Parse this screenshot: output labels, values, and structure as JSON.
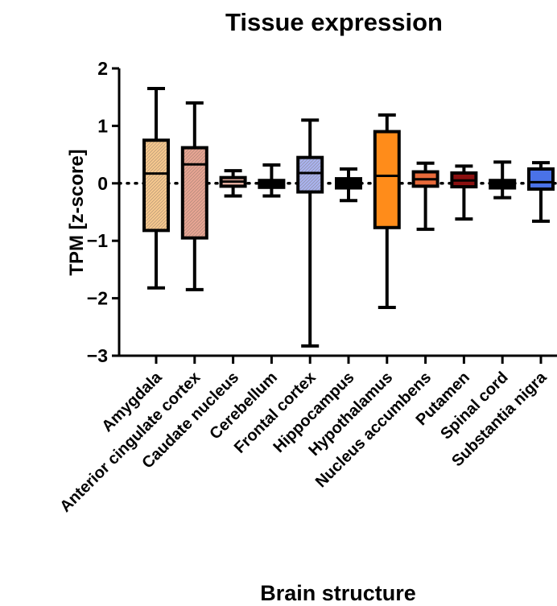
{
  "chart_data": {
    "type": "box",
    "title": "Tissue expression",
    "xlabel": "Brain structure",
    "ylabel": "TPM [z-score]",
    "ylim": [
      -3,
      2
    ],
    "yticks": [
      2,
      1,
      0,
      -1,
      -2,
      -3
    ],
    "ytick_labels": [
      "2",
      "1",
      "0",
      "−1",
      "−2",
      "−3"
    ],
    "reference_line": {
      "y": 0,
      "style": "dotted"
    },
    "categories": [
      "Amygdala",
      "Anterior cingulate cortex",
      "Caudate nucleus",
      "Cerebellum",
      "Frontal cortex",
      "Hippocampus",
      "Hypothalamus",
      "Nucleus accumbens",
      "Putamen",
      "Spinal cord",
      "Substantia nigra"
    ],
    "boxes": [
      {
        "min": -1.82,
        "q1": -0.82,
        "median": 0.17,
        "q3": 0.75,
        "max": 1.65,
        "color": "#F6C88E",
        "hatched": true
      },
      {
        "min": -1.85,
        "q1": -0.95,
        "median": 0.33,
        "q3": 0.62,
        "max": 1.4,
        "color": "#E8A593",
        "hatched": true
      },
      {
        "min": -0.22,
        "q1": -0.05,
        "median": 0.03,
        "q3": 0.1,
        "max": 0.22,
        "color": "#F0B7A7",
        "hatched": false
      },
      {
        "min": -0.22,
        "q1": -0.07,
        "median": -0.01,
        "q3": 0.05,
        "max": 0.32,
        "color": "#000000",
        "hatched": false
      },
      {
        "min": -2.83,
        "q1": -0.15,
        "median": 0.18,
        "q3": 0.45,
        "max": 1.1,
        "color": "#A9B4F0",
        "hatched": true
      },
      {
        "min": -0.3,
        "q1": -0.08,
        "median": -0.01,
        "q3": 0.08,
        "max": 0.25,
        "color": "#000000",
        "hatched": false
      },
      {
        "min": -2.16,
        "q1": -0.77,
        "median": 0.13,
        "q3": 0.9,
        "max": 1.19,
        "color": "#FF8C1A",
        "hatched": false
      },
      {
        "min": -0.8,
        "q1": -0.05,
        "median": 0.07,
        "q3": 0.2,
        "max": 0.35,
        "color": "#E86A3A",
        "hatched": false
      },
      {
        "min": -0.62,
        "q1": -0.06,
        "median": 0.05,
        "q3": 0.18,
        "max": 0.3,
        "color": "#8B1010",
        "hatched": false
      },
      {
        "min": -0.25,
        "q1": -0.08,
        "median": -0.02,
        "q3": 0.05,
        "max": 0.37,
        "color": "#000000",
        "hatched": false
      },
      {
        "min": -0.66,
        "q1": -0.1,
        "median": 0.02,
        "q3": 0.25,
        "max": 0.36,
        "color": "#4A72E8",
        "hatched": false
      }
    ]
  }
}
